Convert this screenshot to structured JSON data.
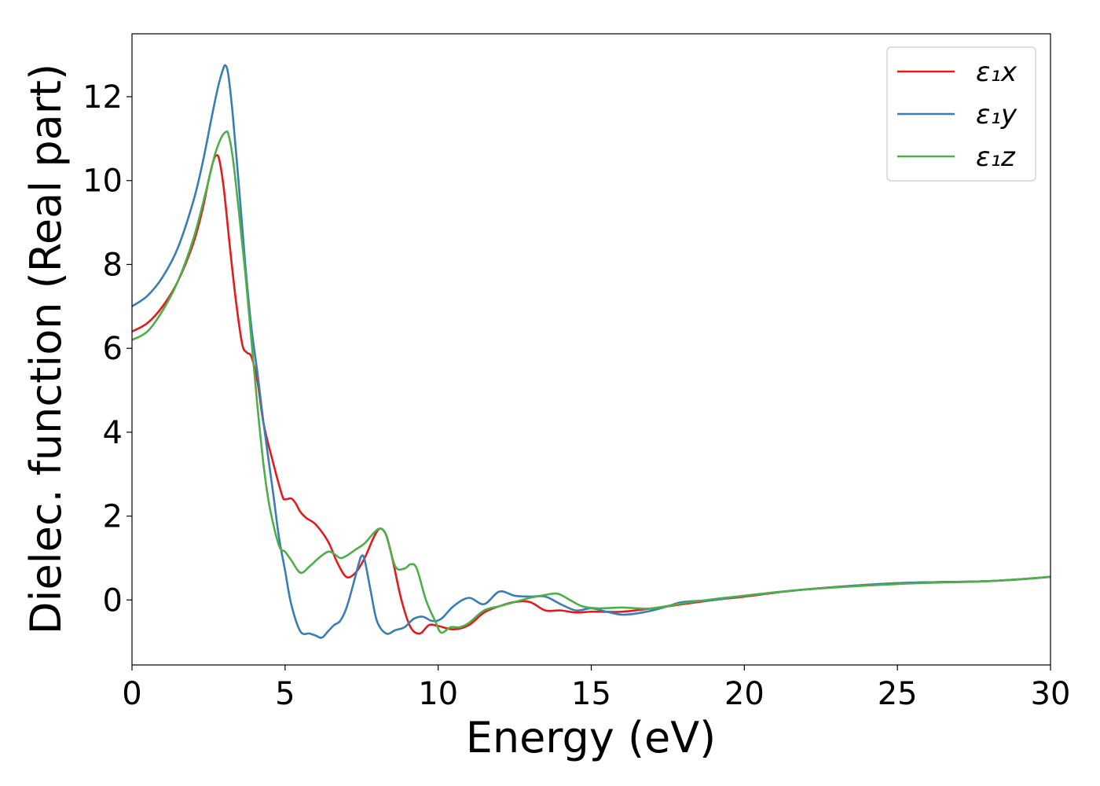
{
  "chart_data": {
    "type": "line",
    "xlabel": "Energy (eV)",
    "ylabel": "Dielec. function (Real part)",
    "xlim": [
      0,
      30
    ],
    "ylim": [
      -1.55,
      13.5
    ],
    "xticks": [
      0,
      5,
      10,
      15,
      20,
      25,
      30
    ],
    "xtick_labels": [
      "0",
      "5",
      "10",
      "15",
      "20",
      "25",
      "30"
    ],
    "yticks": [
      0,
      2,
      4,
      6,
      8,
      10,
      12
    ],
    "ytick_labels": [
      "0",
      "2",
      "4",
      "6",
      "8",
      "10",
      "12"
    ],
    "grid": false,
    "legend_position": "top-right",
    "series": [
      {
        "name": "ε₁x",
        "color": "#e41a1c",
        "x": [
          0,
          0.5,
          1,
          1.5,
          2,
          2.3,
          2.5,
          2.65,
          2.75,
          2.85,
          3.0,
          3.2,
          3.4,
          3.6,
          3.75,
          3.9,
          4.1,
          4.3,
          4.6,
          4.9,
          5.0,
          5.2,
          5.35,
          5.5,
          5.7,
          6.0,
          6.4,
          6.7,
          7.0,
          7.3,
          7.6,
          7.9,
          8.1,
          8.3,
          8.5,
          8.8,
          9.1,
          9.4,
          9.7,
          10.0,
          10.5,
          11.0,
          11.5,
          12.0,
          12.5,
          13.0,
          13.5,
          14.0,
          14.5,
          15.0,
          16.0,
          17.0,
          18.0,
          19.0,
          20.0,
          22.0,
          25.0,
          28.0,
          30.0
        ],
        "y": [
          6.4,
          6.6,
          7.0,
          7.6,
          8.5,
          9.3,
          10.0,
          10.45,
          10.6,
          10.5,
          9.8,
          8.4,
          7.1,
          6.1,
          5.9,
          5.8,
          5.2,
          4.2,
          3.3,
          2.5,
          2.4,
          2.42,
          2.3,
          2.1,
          1.95,
          1.8,
          1.4,
          0.9,
          0.55,
          0.65,
          1.0,
          1.5,
          1.7,
          1.55,
          1.0,
          0.0,
          -0.65,
          -0.8,
          -0.6,
          -0.62,
          -0.7,
          -0.6,
          -0.3,
          -0.15,
          -0.05,
          -0.05,
          -0.25,
          -0.25,
          -0.3,
          -0.28,
          -0.28,
          -0.2,
          -0.1,
          0.0,
          0.08,
          0.25,
          0.4,
          0.45,
          0.55
        ]
      },
      {
        "name": "ε₁y",
        "color": "#377eb8",
        "x": [
          0,
          0.5,
          1,
          1.5,
          2,
          2.3,
          2.6,
          2.8,
          2.95,
          3.05,
          3.15,
          3.3,
          3.5,
          3.7,
          3.9,
          4.1,
          4.3,
          4.6,
          4.8,
          5.0,
          5.2,
          5.5,
          5.8,
          6.0,
          6.2,
          6.4,
          6.6,
          6.8,
          7.0,
          7.2,
          7.4,
          7.5,
          7.6,
          7.8,
          8.0,
          8.3,
          8.6,
          8.9,
          9.2,
          9.5,
          9.8,
          10.1,
          10.5,
          11.0,
          11.5,
          12.0,
          12.5,
          13.0,
          13.5,
          14.0,
          14.5,
          15.0,
          15.5,
          16.0,
          16.5,
          17.0,
          17.5,
          18.0,
          19.0,
          20.0,
          22.0,
          25.0,
          28.0,
          30.0
        ],
        "y": [
          7.0,
          7.25,
          7.7,
          8.4,
          9.5,
          10.4,
          11.5,
          12.2,
          12.6,
          12.75,
          12.5,
          11.5,
          9.8,
          8.0,
          6.5,
          5.4,
          4.2,
          2.6,
          1.5,
          0.7,
          -0.1,
          -0.75,
          -0.8,
          -0.85,
          -0.9,
          -0.75,
          -0.6,
          -0.5,
          -0.2,
          0.3,
          0.85,
          1.05,
          0.95,
          0.2,
          -0.5,
          -0.8,
          -0.72,
          -0.65,
          -0.45,
          -0.4,
          -0.5,
          -0.45,
          -0.15,
          0.05,
          -0.1,
          0.2,
          0.1,
          0.08,
          0.08,
          -0.1,
          -0.25,
          -0.2,
          -0.28,
          -0.35,
          -0.32,
          -0.25,
          -0.15,
          -0.05,
          0.0,
          0.1,
          0.25,
          0.4,
          0.45,
          0.55
        ]
      },
      {
        "name": "ε₁z",
        "color": "#4daf4a",
        "x": [
          0,
          0.5,
          1,
          1.5,
          2,
          2.4,
          2.7,
          2.9,
          3.05,
          3.15,
          3.3,
          3.5,
          3.7,
          3.9,
          4.1,
          4.3,
          4.5,
          4.8,
          5.0,
          5.2,
          5.5,
          5.8,
          6.1,
          6.4,
          6.6,
          6.8,
          7.0,
          7.3,
          7.6,
          7.9,
          8.1,
          8.3,
          8.6,
          8.9,
          9.1,
          9.3,
          9.6,
          9.9,
          10.1,
          10.4,
          10.7,
          11.0,
          11.5,
          12.0,
          12.5,
          13.0,
          13.5,
          13.9,
          14.3,
          14.7,
          15.2,
          16.0,
          16.5,
          17.0,
          18.0,
          19.0,
          20.0,
          22.0,
          25.0,
          28.0,
          30.0
        ],
        "y": [
          6.2,
          6.4,
          6.9,
          7.6,
          8.6,
          9.7,
          10.6,
          11.0,
          11.15,
          11.1,
          10.5,
          9.2,
          7.8,
          6.2,
          4.6,
          3.2,
          2.2,
          1.3,
          1.15,
          0.95,
          0.65,
          0.8,
          1.0,
          1.15,
          1.1,
          1.0,
          1.05,
          1.2,
          1.35,
          1.6,
          1.7,
          1.55,
          0.8,
          0.75,
          0.85,
          0.75,
          0.0,
          -0.5,
          -0.78,
          -0.65,
          -0.65,
          -0.55,
          -0.25,
          -0.15,
          -0.05,
          0.05,
          0.12,
          0.15,
          0.0,
          -0.15,
          -0.2,
          -0.18,
          -0.2,
          -0.2,
          -0.08,
          0.02,
          0.1,
          0.25,
          0.38,
          0.45,
          0.55
        ]
      }
    ]
  }
}
